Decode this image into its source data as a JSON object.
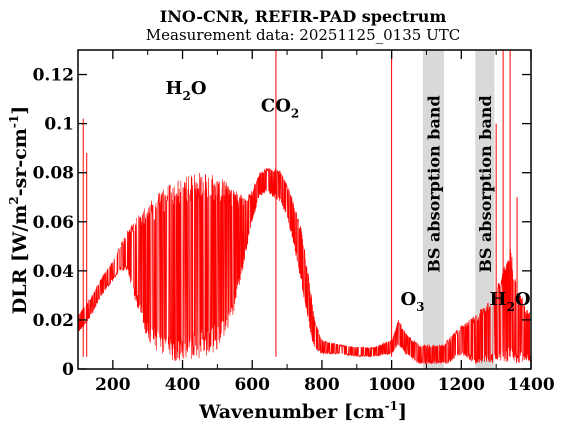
{
  "chart_data": {
    "type": "line",
    "title": "INO-CNR, REFIR-PAD spectrum",
    "subtitle": "Measurement data: 20251125_0135 UTC",
    "xlabel": {
      "main": "Wavenumber [cm",
      "sup": "-1",
      "close": "]"
    },
    "ylabel": {
      "part1": "DLR [W/m",
      "sup1": "2",
      "part2": "-sr-cm",
      "sup2": "-1",
      "close": "]"
    },
    "xlim": [
      100,
      1400
    ],
    "ylim": [
      0,
      0.13
    ],
    "xticks": [
      200,
      400,
      600,
      800,
      1000,
      1200,
      1400
    ],
    "xtick_labels": [
      "200",
      "400",
      "600",
      "800",
      "1000",
      "1200",
      "1400"
    ],
    "yticks": [
      0,
      0.02,
      0.04,
      0.06,
      0.08,
      0.1,
      0.12
    ],
    "ytick_labels": [
      "0",
      "0.02",
      "0.04",
      "0.06",
      "0.08",
      "0.1",
      "0.12"
    ],
    "series_color": "#ff0000",
    "band_color": "#d9d9d9",
    "bands": [
      {
        "x_range": [
          1090,
          1150
        ],
        "label": "BS absorption band"
      },
      {
        "x_range": [
          1240,
          1295
        ],
        "label": "BS absorption band"
      }
    ],
    "annotations": [
      {
        "x": 410,
        "y": 0.112,
        "main": "H",
        "sub": "2",
        "tail": "O"
      },
      {
        "x": 680,
        "y": 0.105,
        "main": "CO",
        "sub": "2",
        "tail": ""
      },
      {
        "x": 1060,
        "y": 0.026,
        "main": "O",
        "sub": "3",
        "tail": ""
      },
      {
        "x": 1340,
        "y": 0.026,
        "main": "H",
        "sub": "2",
        "tail": "O"
      }
    ],
    "envelope": {
      "x": [
        100,
        110,
        120,
        130,
        140,
        150,
        160,
        170,
        180,
        190,
        200,
        220,
        240,
        260,
        280,
        300,
        320,
        340,
        360,
        380,
        400,
        420,
        440,
        460,
        480,
        500,
        520,
        540,
        560,
        580,
        600,
        620,
        640,
        660,
        680,
        700,
        720,
        740,
        760,
        770,
        780,
        800,
        850,
        900,
        950,
        1000,
        1020,
        1040,
        1060,
        1080,
        1090,
        1150,
        1160,
        1180,
        1200,
        1220,
        1240,
        1295,
        1300,
        1320,
        1340,
        1360,
        1380,
        1400
      ],
      "top": [
        0.023,
        0.024,
        0.026,
        0.028,
        0.03,
        0.033,
        0.035,
        0.038,
        0.04,
        0.042,
        0.044,
        0.05,
        0.056,
        0.06,
        0.064,
        0.067,
        0.07,
        0.073,
        0.075,
        0.077,
        0.078,
        0.079,
        0.08,
        0.081,
        0.08,
        0.079,
        0.077,
        0.074,
        0.072,
        0.07,
        0.073,
        0.08,
        0.082,
        0.082,
        0.081,
        0.075,
        0.068,
        0.058,
        0.04,
        0.03,
        0.02,
        0.012,
        0.01,
        0.009,
        0.009,
        0.012,
        0.02,
        0.015,
        0.012,
        0.01,
        0.01,
        0.01,
        0.012,
        0.015,
        0.018,
        0.02,
        0.022,
        0.03,
        0.035,
        0.04,
        0.05,
        0.035,
        0.028,
        0.022
      ],
      "bottom": [
        0.015,
        0.016,
        0.018,
        0.02,
        0.022,
        0.025,
        0.028,
        0.03,
        0.032,
        0.034,
        0.036,
        0.04,
        0.04,
        0.03,
        0.02,
        0.012,
        0.008,
        0.006,
        0.004,
        0.003,
        0.003,
        0.003,
        0.004,
        0.005,
        0.006,
        0.008,
        0.012,
        0.018,
        0.03,
        0.045,
        0.06,
        0.07,
        0.072,
        0.07,
        0.068,
        0.062,
        0.05,
        0.035,
        0.02,
        0.012,
        0.008,
        0.006,
        0.006,
        0.005,
        0.005,
        0.006,
        0.01,
        0.006,
        0.004,
        0.002,
        0.002,
        0.002,
        0.002,
        0.004,
        0.006,
        0.004,
        0.002,
        0.002,
        0.004,
        0.003,
        0.002,
        0.002,
        0.003,
        0.002
      ]
    },
    "spikes": [
      {
        "x": 115,
        "y": 0.102
      },
      {
        "x": 125,
        "y": 0.088
      },
      {
        "x": 668,
        "y": 0.13
      },
      {
        "x": 1000,
        "y": 0.13
      },
      {
        "x": 1300,
        "y": 0.1
      },
      {
        "x": 1320,
        "y": 0.13
      },
      {
        "x": 1340,
        "y": 0.13
      },
      {
        "x": 1360,
        "y": 0.07
      }
    ],
    "grid": false
  }
}
